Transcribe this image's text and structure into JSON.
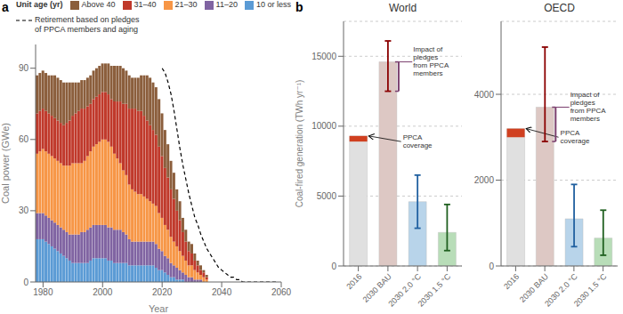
{
  "chart_data": [
    {
      "type": "bar",
      "stacked": true,
      "panel_label": "a",
      "xlabel": "Year",
      "ylabel": "Coal power (GWe)",
      "legend": "top",
      "legend_title": "Unit age (yr)",
      "grid": false,
      "x": [
        1978,
        1979,
        1980,
        1981,
        1982,
        1983,
        1984,
        1985,
        1986,
        1987,
        1988,
        1989,
        1990,
        1991,
        1992,
        1993,
        1994,
        1995,
        1996,
        1997,
        1998,
        1999,
        2000,
        2001,
        2002,
        2003,
        2004,
        2005,
        2006,
        2007,
        2008,
        2009,
        2010,
        2011,
        2012,
        2013,
        2014,
        2015,
        2016,
        2017,
        2018,
        2019,
        2020,
        2021,
        2022,
        2023,
        2024,
        2025,
        2026,
        2027,
        2028,
        2029,
        2030,
        2031,
        2032,
        2033,
        2034,
        2035,
        2036,
        2037,
        2038,
        2039,
        2040,
        2041,
        2042,
        2043,
        2044,
        2045,
        2046,
        2047,
        2048,
        2049,
        2050,
        2051,
        2052,
        2053,
        2054,
        2055,
        2056,
        2057,
        2058,
        2059
      ],
      "xlim": [
        1977.5,
        2060
      ],
      "xticks": [
        1980,
        2000,
        2020,
        2040,
        2060
      ],
      "ylim": [
        0,
        100
      ],
      "yticks": [
        0,
        30,
        60,
        90
      ],
      "series": [
        {
          "name": "10 or less",
          "color": "#5b9bd5",
          "values": [
            18,
            18,
            18,
            17,
            16,
            15,
            14,
            13,
            12,
            11,
            10,
            9,
            8,
            8,
            8,
            8,
            8,
            8,
            9,
            10,
            10,
            10,
            10,
            10,
            9,
            9,
            8,
            8,
            8,
            8,
            8,
            7,
            7,
            7,
            7,
            7,
            7,
            7,
            7,
            7,
            6,
            5,
            5,
            4,
            3,
            2,
            2,
            1,
            1,
            1,
            0,
            0,
            0,
            0,
            0,
            0,
            0,
            0,
            0,
            0,
            0,
            0,
            0,
            0,
            0,
            0,
            0,
            0,
            0,
            0,
            0,
            0,
            0,
            0,
            0,
            0,
            0,
            0,
            0,
            0,
            0,
            0
          ]
        },
        {
          "name": "11–20",
          "color": "#8064a2",
          "values": [
            11,
            11,
            11,
            11,
            11,
            11,
            11,
            11,
            11,
            11,
            11,
            11,
            12,
            12,
            12,
            13,
            13,
            14,
            14,
            14,
            14,
            14,
            14,
            14,
            14,
            14,
            14,
            14,
            14,
            13,
            12,
            11,
            10,
            10,
            10,
            10,
            10,
            10,
            10,
            10,
            10,
            9,
            8,
            7,
            7,
            6,
            5,
            5,
            4,
            3,
            3,
            2,
            2,
            1,
            1,
            1,
            0,
            0,
            0,
            0,
            0,
            0,
            0,
            0,
            0,
            0,
            0,
            0,
            0,
            0,
            0,
            0,
            0,
            0,
            0,
            0,
            0,
            0,
            0,
            0,
            0,
            0
          ]
        },
        {
          "name": "21–30",
          "color": "#f79646",
          "values": [
            25,
            26,
            27,
            27,
            27,
            27,
            27,
            27,
            27,
            27,
            28,
            29,
            30,
            30,
            30,
            29,
            30,
            31,
            32,
            33,
            34,
            35,
            36,
            36,
            36,
            34,
            32,
            30,
            28,
            26,
            25,
            23,
            22,
            21,
            20,
            20,
            19,
            18,
            17,
            16,
            16,
            15,
            14,
            13,
            12,
            11,
            10,
            9,
            8,
            7,
            6,
            5,
            5,
            4,
            3,
            2,
            2,
            1,
            0,
            0,
            0,
            0,
            0,
            0,
            0,
            0,
            0,
            0,
            0,
            0,
            0,
            0,
            0,
            0,
            0,
            0,
            0,
            0,
            0,
            0,
            0,
            0
          ]
        },
        {
          "name": "31–40",
          "color": "#c0392b",
          "values": [
            17,
            17,
            17,
            17,
            17,
            17,
            17,
            17,
            17,
            17,
            18,
            19,
            20,
            21,
            22,
            23,
            22,
            21,
            20,
            20,
            20,
            20,
            20,
            20,
            20,
            20,
            22,
            24,
            26,
            28,
            30,
            32,
            34,
            35,
            35,
            35,
            34,
            33,
            32,
            31,
            30,
            28,
            26,
            24,
            22,
            20,
            18,
            15,
            13,
            10,
            8,
            6,
            5,
            4,
            3,
            2,
            2,
            1,
            0,
            0,
            0,
            0,
            0,
            0,
            0,
            0,
            0,
            0,
            0,
            0,
            0,
            0,
            0,
            0,
            0,
            0,
            0,
            0,
            0,
            0,
            0,
            0
          ]
        },
        {
          "name": "Above 40",
          "color": "#8B5E3C",
          "values": [
            16,
            16,
            16,
            16,
            16,
            17,
            18,
            18,
            18,
            18,
            17,
            16,
            14,
            13,
            12,
            12,
            12,
            12,
            12,
            12,
            12,
            12,
            12,
            12,
            13,
            14,
            15,
            15,
            15,
            15,
            14,
            14,
            13,
            13,
            14,
            15,
            17,
            19,
            20,
            20,
            20,
            20,
            18,
            16,
            14,
            12,
            11,
            9,
            8,
            6,
            5,
            4,
            4,
            3,
            2,
            2,
            1,
            1,
            0,
            0,
            0,
            0,
            0,
            0,
            0,
            0,
            0,
            0,
            0,
            0,
            0,
            0,
            0,
            0,
            0,
            0,
            0,
            0,
            0,
            0,
            0,
            0
          ]
        },
        {
          "name": "Retirement based on pledges\nof PPCA members and aging",
          "type": "line",
          "line_style": "dashed",
          "color": "#000000",
          "values": [
            null,
            null,
            null,
            null,
            null,
            null,
            null,
            null,
            null,
            null,
            null,
            null,
            null,
            null,
            null,
            null,
            null,
            null,
            null,
            null,
            null,
            null,
            null,
            null,
            null,
            null,
            null,
            null,
            null,
            null,
            null,
            null,
            null,
            null,
            null,
            null,
            null,
            null,
            null,
            null,
            null,
            null,
            90,
            88,
            84,
            79,
            72,
            64,
            56,
            49,
            43,
            37,
            32,
            27,
            24,
            20,
            17,
            14,
            12,
            10,
            8,
            6,
            5,
            4,
            3,
            2,
            2,
            1,
            1,
            0,
            0,
            0,
            0,
            0,
            0,
            0,
            0,
            0,
            0,
            0,
            0,
            0
          ]
        }
      ]
    },
    {
      "type": "bar",
      "title": "World",
      "panel_label": "b",
      "ylabel": "Coal-fired generation (TWh yr⁻¹)",
      "grid": true,
      "categories": [
        "2016",
        "2030 BAU",
        "2030 2.0 °C",
        "2030 1.5 °C"
      ],
      "values": [
        9300,
        14600,
        4600,
        2400
      ],
      "colors": [
        "#e0e0e0",
        "#ddc8c4",
        "#b8d4ea",
        "#b8ddb8"
      ],
      "error_low": [
        null,
        12500,
        2700,
        1100
      ],
      "error_high": [
        null,
        16100,
        6500,
        4400
      ],
      "error_colors": [
        null,
        "#8b0000",
        "#2060a0",
        "#206020"
      ],
      "ppca_coverage": {
        "category": "2016",
        "low": 8900,
        "high": 9300,
        "color": "#d04020",
        "label": "PPCA\ncoverage"
      },
      "impact_of_pledges": {
        "category": "2030 BAU",
        "low": 12500,
        "high": 14600,
        "color": "#7b3f6e",
        "label": "Impact of\npledges\nfrom PPCA\nmembers"
      },
      "ylim": [
        0,
        17500
      ],
      "yticks": [
        0,
        5000,
        10000,
        15000
      ]
    },
    {
      "type": "bar",
      "title": "OECD",
      "grid": true,
      "categories": [
        "2016",
        "2030 BAU",
        "2030 2.0 °C",
        "2030 1.5 °C"
      ],
      "values": [
        3200,
        3700,
        1100,
        650
      ],
      "colors": [
        "#e0e0e0",
        "#ddc8c4",
        "#b8d4ea",
        "#b8ddb8"
      ],
      "error_low": [
        null,
        2900,
        450,
        250
      ],
      "error_high": [
        null,
        5100,
        1900,
        1300
      ],
      "error_colors": [
        null,
        "#8b0000",
        "#2060a0",
        "#206020"
      ],
      "ppca_coverage": {
        "category": "2016",
        "low": 3000,
        "high": 3200,
        "color": "#d04020",
        "label": "PPCA\ncoverage"
      },
      "impact_of_pledges": {
        "category": "2030 BAU",
        "low": 2900,
        "high": 3700,
        "color": "#7b3f6e",
        "label": "Impact of\npledges\nfrom PPCA\nmembers"
      },
      "ylim": [
        0,
        5700
      ],
      "yticks": [
        0,
        2000,
        4000
      ]
    }
  ]
}
